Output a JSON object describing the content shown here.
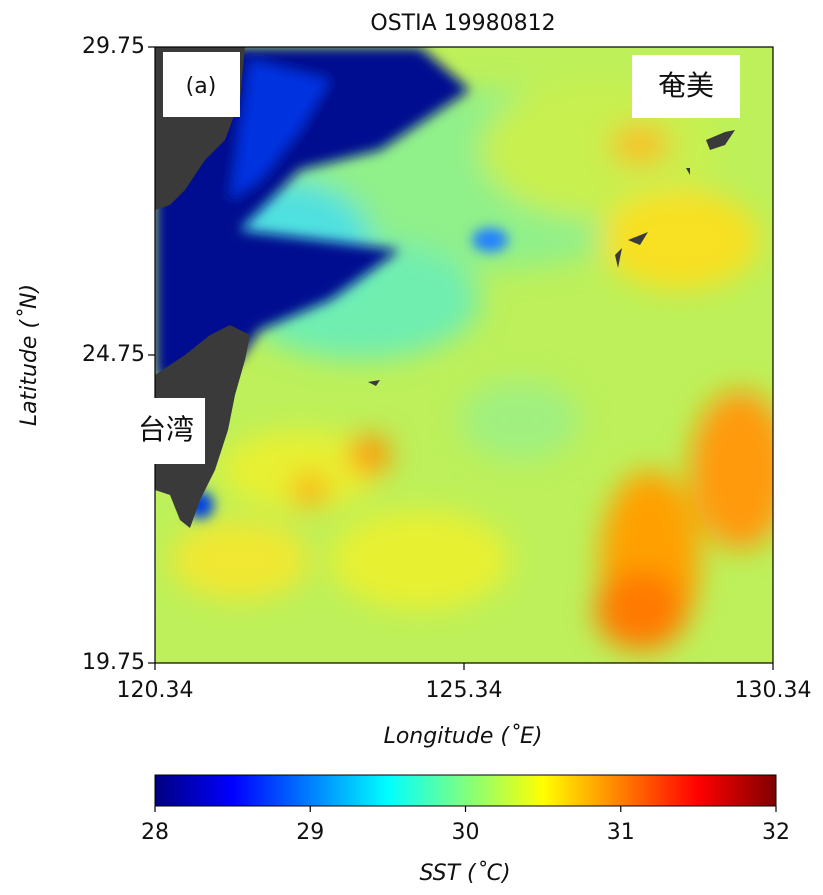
{
  "chart_data": {
    "type": "map",
    "title": "OSTIA 19980812",
    "xlabel": "Longitude (˚E)",
    "ylabel": "Latitude (˚N)",
    "xlim": [
      120.34,
      130.34
    ],
    "ylim": [
      19.75,
      29.75
    ],
    "xticks": [
      120.34,
      125.34,
      130.34
    ],
    "yticks": [
      19.75,
      24.75,
      29.75
    ],
    "colormap": "jet",
    "colorbar": {
      "label": "SST (˚C)",
      "lim": [
        28,
        32
      ],
      "ticks": [
        28,
        29,
        30,
        31,
        32
      ]
    },
    "annotations": [
      "(a)",
      "奄美",
      "台湾"
    ]
  }
}
